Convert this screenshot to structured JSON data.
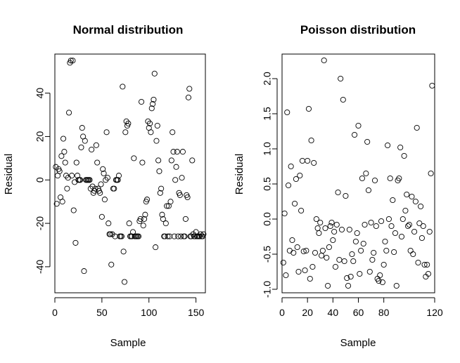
{
  "chart_data": [
    {
      "type": "scatter",
      "title": "Normal distribution",
      "xlabel": "Sample",
      "ylabel": "Residual",
      "xlim": [
        0,
        160
      ],
      "ylim": [
        -52,
        58
      ],
      "xticks": [
        0,
        50,
        100,
        150
      ],
      "yticks": [
        -40,
        -20,
        0,
        20,
        40
      ],
      "grid": false,
      "marker": "open-circle",
      "x": [
        1,
        2,
        3,
        4,
        5,
        6,
        7,
        8,
        9,
        10,
        11,
        12,
        13,
        14,
        15,
        16,
        17,
        18,
        19,
        20,
        21,
        22,
        23,
        24,
        25,
        26,
        27,
        28,
        29,
        30,
        31,
        32,
        33,
        34,
        35,
        36,
        37,
        38,
        39,
        40,
        41,
        42,
        43,
        44,
        45,
        46,
        47,
        48,
        49,
        50,
        51,
        52,
        53,
        54,
        55,
        56,
        57,
        58,
        59,
        60,
        61,
        62,
        63,
        64,
        65,
        66,
        67,
        68,
        69,
        70,
        71,
        72,
        73,
        74,
        75,
        76,
        77,
        78,
        79,
        80,
        81,
        82,
        83,
        84,
        85,
        86,
        87,
        88,
        89,
        90,
        91,
        92,
        93,
        94,
        95,
        96,
        97,
        98,
        99,
        100,
        101,
        102,
        103,
        104,
        105,
        106,
        107,
        108,
        109,
        110,
        111,
        112,
        113,
        114,
        115,
        116,
        117,
        118,
        119,
        120,
        121,
        122,
        123,
        124,
        125,
        126,
        127,
        128,
        129,
        130,
        131,
        132,
        133,
        134,
        135,
        136,
        137,
        138,
        139,
        140,
        141,
        142,
        143,
        144,
        145,
        146,
        147,
        148,
        149,
        150,
        151,
        152,
        153,
        154,
        155,
        156,
        157,
        158
      ],
      "y": [
        6,
        -11,
        2,
        5,
        4,
        -8,
        11,
        -10,
        19,
        13,
        8,
        2,
        -4,
        1,
        31,
        54,
        55,
        2,
        55,
        -14,
        -1,
        -29,
        8,
        2,
        0,
        0,
        0,
        15,
        24,
        20,
        -42,
        18,
        0,
        0,
        0,
        0,
        0,
        -4,
        14,
        -3,
        -6,
        -5,
        -4,
        16,
        8,
        -4,
        -5,
        -6,
        -2,
        -17,
        5,
        3,
        -9,
        0,
        22,
        1,
        -20,
        -25,
        -25,
        -39,
        -25,
        -4,
        -4,
        -26,
        0,
        0,
        0,
        2,
        -26,
        -26,
        -26,
        43,
        -33,
        -47,
        22,
        27,
        25,
        26,
        -20,
        -26,
        -26,
        -26,
        -24,
        10,
        -26,
        -26,
        -26,
        -26,
        -26,
        -19,
        -18,
        36,
        8,
        -21,
        -18,
        -16,
        -10,
        -9,
        27,
        24,
        26,
        22,
        33,
        35,
        37,
        49,
        -31,
        18,
        25,
        9,
        4,
        -6,
        -4,
        -16,
        -18,
        -26,
        -26,
        -20,
        -12,
        -26,
        -12,
        -26,
        -10,
        9,
        22,
        13,
        -26,
        0,
        6,
        13,
        -26,
        -6,
        -7,
        -26,
        1,
        13,
        -26,
        -26,
        -18,
        -7,
        -8,
        38,
        42,
        -26,
        -26,
        9,
        -25,
        -26,
        -26,
        -24,
        -26,
        -26,
        -26,
        -26,
        -25,
        -26,
        -26,
        -25
      ],
      "xlabels": [
        "0",
        "50",
        "100",
        "150"
      ],
      "ylabels": [
        "-40",
        "-20",
        "0",
        "20",
        "40"
      ]
    },
    {
      "type": "scatter",
      "title": "Poisson distribution",
      "xlabel": "Sample",
      "ylabel": "Residual",
      "xlim": [
        0,
        120
      ],
      "ylim": [
        -1.05,
        2.35
      ],
      "xticks": [
        0,
        20,
        40,
        60,
        80,
        120
      ],
      "yticks": [
        -1.0,
        -0.5,
        0.0,
        0.5,
        1.0,
        1.5,
        2.0
      ],
      "grid": false,
      "marker": "open-circle",
      "x": [
        1,
        2,
        3,
        4,
        5,
        6,
        7,
        8,
        9,
        10,
        11,
        12,
        13,
        14,
        15,
        16,
        17,
        18,
        19,
        20,
        21,
        22,
        23,
        24,
        25,
        26,
        27,
        28,
        29,
        30,
        31,
        32,
        33,
        34,
        35,
        36,
        37,
        38,
        39,
        40,
        41,
        42,
        43,
        44,
        45,
        46,
        47,
        48,
        49,
        50,
        51,
        52,
        53,
        54,
        55,
        56,
        57,
        58,
        59,
        60,
        61,
        62,
        63,
        64,
        65,
        66,
        67,
        68,
        69,
        70,
        71,
        72,
        73,
        74,
        75,
        76,
        77,
        78,
        79,
        80,
        81,
        82,
        83,
        84,
        85,
        86,
        87,
        88,
        89,
        90,
        91,
        92,
        93,
        94,
        95,
        96,
        97,
        98,
        99,
        100,
        101,
        102,
        103,
        104,
        105,
        106,
        107,
        108,
        109,
        110,
        111,
        112,
        113,
        114,
        115,
        116,
        117,
        118
      ],
      "y": [
        -0.62,
        0.08,
        -0.8,
        1.52,
        0.48,
        -0.45,
        0.75,
        -0.3,
        -0.48,
        0.22,
        0.57,
        -0.4,
        -0.75,
        0.62,
        0.12,
        0.83,
        -0.46,
        -0.73,
        -0.45,
        0.83,
        1.57,
        -0.85,
        1.12,
        -0.68,
        0.8,
        -0.48,
        0.0,
        -0.13,
        -0.2,
        -0.05,
        -0.52,
        -0.45,
        2.26,
        -0.13,
        -0.55,
        -0.95,
        -0.4,
        -0.1,
        -0.05,
        -0.3,
        -0.18,
        -0.68,
        -0.08,
        0.38,
        -0.58,
        2.0,
        -0.15,
        1.7,
        -0.6,
        0.33,
        -0.84,
        -0.95,
        -0.15,
        -0.82,
        -0.5,
        -0.6,
        1.2,
        -0.32,
        -0.2,
        1.33,
        -0.78,
        -0.45,
        0.58,
        -0.35,
        -0.08,
        0.65,
        1.1,
        0.41,
        -0.75,
        -0.05,
        -0.58,
        -0.48,
        0.55,
        -0.1,
        -0.85,
        -0.88,
        -0.8,
        -0.03,
        -0.9,
        -0.65,
        -0.32,
        -0.45,
        1.05,
        0.0,
        0.58,
        -0.1,
        0.27,
        -0.47,
        -0.2,
        -0.95,
        0.55,
        0.58,
        1.02,
        -0.25,
        0.0,
        0.9,
        0.12,
        0.35,
        -0.1,
        -0.08,
        -0.45,
        0.32,
        -0.5,
        -0.18,
        0.25,
        1.3,
        -0.62,
        -0.06,
        0.18,
        -0.27,
        -0.1,
        -0.65,
        -0.82,
        -0.65,
        -0.78,
        -0.18,
        0.65,
        1.9
      ],
      "xlabels": [
        "0",
        "20",
        "40",
        "60",
        "80",
        "120"
      ],
      "ylabels": [
        "-1.0",
        "-0.5",
        "0.0",
        "0.5",
        "1.0",
        "1.5",
        "2.0"
      ]
    }
  ]
}
